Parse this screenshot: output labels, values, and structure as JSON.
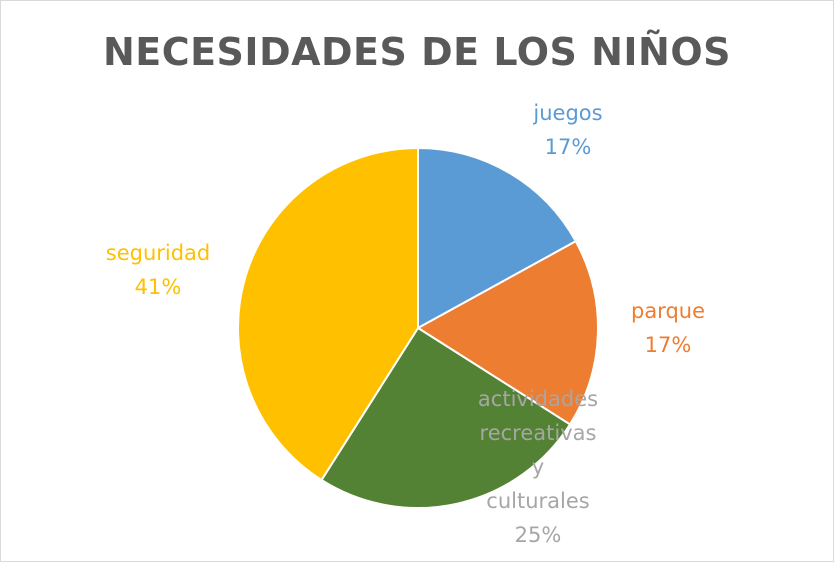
{
  "chart_data": {
    "type": "pie",
    "title": "NECESIDADES DE LOS NIÑOS",
    "slices": [
      {
        "label_lines": [
          "juegos"
        ],
        "value_label": "17%",
        "value": 17,
        "color": "#5b9bd5"
      },
      {
        "label_lines": [
          "parque"
        ],
        "value_label": "17%",
        "value": 17,
        "color": "#ed7d31"
      },
      {
        "label_lines": [
          "actividades",
          "recreativas",
          "y",
          "culturales"
        ],
        "value_label": "25%",
        "value": 25,
        "color": "#548235"
      },
      {
        "label_lines": [
          "seguridad"
        ],
        "value_label": "41%",
        "value": 41,
        "color": "#ffc000"
      }
    ],
    "label_colors": [
      "#5b9bd5",
      "#ed7d31",
      "#a6a6a6",
      "#ffc000"
    ],
    "legend": "none",
    "start": "top, clockwise"
  }
}
